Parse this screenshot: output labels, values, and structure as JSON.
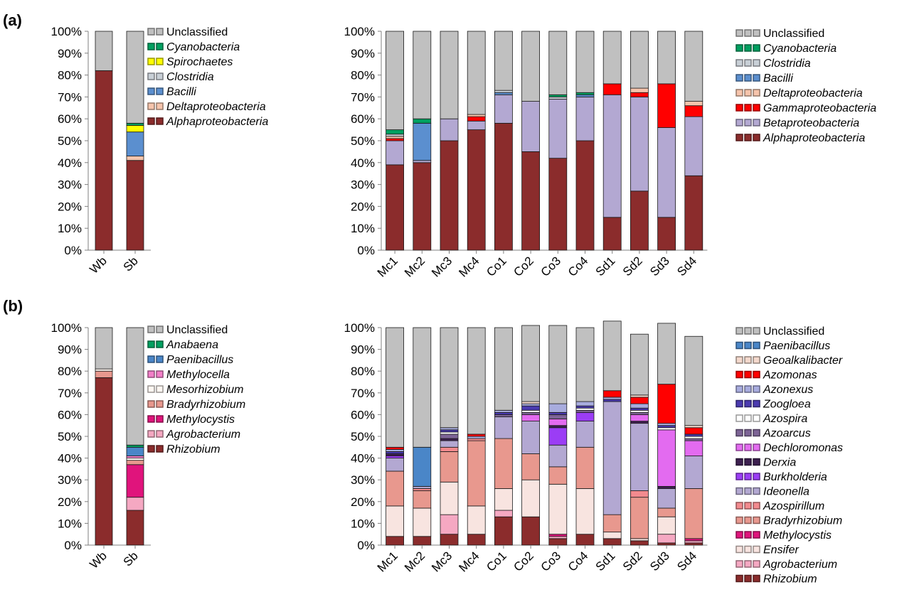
{
  "panel_labels": [
    "(a)",
    "(b)"
  ],
  "colors": {
    "Unclassified": "#c0c0c0",
    "Alphaproteobacteria": "#8b2c2c",
    "Betaproteobacteria": "#b3a8d2",
    "Gammaproteobacteria": "#ff0000",
    "Deltaproteobacteria": "#f6c4ac",
    "Bacilli": "#5b8fcf",
    "Clostridia": "#c8cfd6",
    "Spirochaetes": "#ffff00",
    "Cyanobacteria": "#00a060",
    "Anabaena": "#00a060",
    "Paenibacillus": "#4a86c8",
    "Methylocella": "#f27fc8",
    "Mesorhizobium": "#fff7f2",
    "Bradyrhizobium": "#e8988e",
    "Methylocystis": "#e0147c",
    "Agrobacterium": "#f5a8c2",
    "Rhizobium": "#8b2c2c",
    "Geoalkalibacter": "#f4d8cc",
    "Azomonas": "#ff0000",
    "Azonexus": "#a8acde",
    "Zoogloea": "#4a3ab0",
    "Azospira": "#ffffff",
    "Azoarcus": "#7d6496",
    "Dechloromonas": "#e36bf0",
    "Derxia": "#3d2050",
    "Burkholderia": "#9b3df5",
    "Ideonella": "#b3a8d2",
    "Azospirillum": "#f28a8e",
    "Ensifer": "#f8e4e0"
  },
  "chart_data": [
    {
      "type": "bar",
      "stacked": true,
      "categories": [
        "Wb",
        "Sb"
      ],
      "ylim": [
        0,
        100
      ],
      "yticks": [
        "0%",
        "10%",
        "20%",
        "30%",
        "40%",
        "50%",
        "60%",
        "70%",
        "80%",
        "90%",
        "100%"
      ],
      "series": [
        {
          "name": "Alphaproteobacteria",
          "values": [
            82,
            41
          ]
        },
        {
          "name": "Deltaproteobacteria",
          "values": [
            0,
            2
          ]
        },
        {
          "name": "Bacilli",
          "values": [
            0,
            11
          ]
        },
        {
          "name": "Clostridia",
          "values": [
            0,
            0
          ]
        },
        {
          "name": "Spirochaetes",
          "values": [
            0,
            3
          ]
        },
        {
          "name": "Cyanobacteria",
          "values": [
            0,
            1
          ]
        },
        {
          "name": "Unclassified",
          "values": [
            18,
            42
          ]
        }
      ],
      "legend": [
        "Unclassified",
        "Cyanobacteria",
        "Spirochaetes",
        "Clostridia",
        "Bacilli",
        "Deltaproteobacteria",
        "Alphaproteobacteria"
      ]
    },
    {
      "type": "bar",
      "stacked": true,
      "categories": [
        "Mc1",
        "Mc2",
        "Mc3",
        "Mc4",
        "Co1",
        "Co2",
        "Co3",
        "Co4",
        "Sd1",
        "Sd2",
        "Sd3",
        "Sd4"
      ],
      "ylim": [
        0,
        100
      ],
      "yticks": [
        "0%",
        "10%",
        "20%",
        "30%",
        "40%",
        "50%",
        "60%",
        "70%",
        "80%",
        "90%",
        "100%"
      ],
      "series": [
        {
          "name": "Alphaproteobacteria",
          "values": [
            39,
            40,
            50,
            55,
            58,
            45,
            42,
            50,
            15,
            27,
            15,
            34
          ]
        },
        {
          "name": "Betaproteobacteria",
          "values": [
            11,
            1,
            10,
            4,
            13,
            23,
            27,
            20,
            56,
            43,
            41,
            27
          ]
        },
        {
          "name": "Gammaproteobacteria",
          "values": [
            1,
            0,
            0,
            2,
            0,
            0,
            0,
            0,
            5,
            2,
            20,
            5
          ]
        },
        {
          "name": "Deltaproteobacteria",
          "values": [
            1,
            0,
            0,
            1,
            0,
            0,
            0,
            0,
            0,
            2,
            0,
            2
          ]
        },
        {
          "name": "Bacilli",
          "values": [
            0,
            17,
            0,
            0,
            1,
            0,
            0,
            1,
            0,
            0,
            0,
            0
          ]
        },
        {
          "name": "Clostridia",
          "values": [
            1,
            0,
            0,
            0,
            1,
            0,
            1,
            0,
            0,
            0,
            0,
            0
          ]
        },
        {
          "name": "Cyanobacteria",
          "values": [
            2,
            2,
            0,
            0,
            0,
            0,
            1,
            1,
            0,
            0,
            0,
            0
          ]
        },
        {
          "name": "Unclassified",
          "values": [
            45,
            40,
            40,
            38,
            27,
            32,
            29,
            28,
            24,
            26,
            24,
            32
          ]
        }
      ],
      "legend": [
        "Unclassified",
        "Cyanobacteria",
        "Clostridia",
        "Bacilli",
        "Deltaproteobacteria",
        "Gammaproteobacteria",
        "Betaproteobacteria",
        "Alphaproteobacteria"
      ]
    },
    {
      "type": "bar",
      "stacked": true,
      "categories": [
        "Wb",
        "Sb"
      ],
      "ylim": [
        0,
        100
      ],
      "yticks": [
        "0%",
        "10%",
        "20%",
        "30%",
        "40%",
        "50%",
        "60%",
        "70%",
        "80%",
        "90%",
        "100%"
      ],
      "series": [
        {
          "name": "Rhizobium",
          "values": [
            77,
            16
          ]
        },
        {
          "name": "Agrobacterium",
          "values": [
            0,
            6
          ]
        },
        {
          "name": "Methylocystis",
          "values": [
            0,
            15
          ]
        },
        {
          "name": "Bradyrhizobium",
          "values": [
            3,
            2
          ]
        },
        {
          "name": "Mesorhizobium",
          "values": [
            1,
            1
          ]
        },
        {
          "name": "Methylocella",
          "values": [
            0,
            1
          ]
        },
        {
          "name": "Paenibacillus",
          "values": [
            0,
            4
          ]
        },
        {
          "name": "Anabaena",
          "values": [
            0,
            1
          ]
        },
        {
          "name": "Unclassified",
          "values": [
            19,
            54
          ]
        }
      ],
      "legend": [
        "Unclassified",
        "Anabaena",
        "Paenibacillus",
        "Methylocella",
        "Mesorhizobium",
        "Bradyrhizobium",
        "Methylocystis",
        "Agrobacterium",
        "Rhizobium"
      ]
    },
    {
      "type": "bar",
      "stacked": true,
      "categories": [
        "Mc1",
        "Mc2",
        "Mc3",
        "Mc4",
        "Co1",
        "Co2",
        "Co3",
        "Co4",
        "Sd1",
        "Sd2",
        "Sd3",
        "Sd4"
      ],
      "ylim": [
        0,
        100
      ],
      "yticks": [
        "0%",
        "10%",
        "20%",
        "30%",
        "40%",
        "50%",
        "60%",
        "70%",
        "80%",
        "90%",
        "100%"
      ],
      "series": [
        {
          "name": "Rhizobium",
          "values": [
            4,
            4,
            5,
            5,
            13,
            13,
            3,
            5,
            3,
            2,
            1,
            1
          ]
        },
        {
          "name": "Agrobacterium",
          "values": [
            0,
            0,
            9,
            0,
            3,
            0,
            1,
            0,
            0,
            0,
            4,
            1
          ]
        },
        {
          "name": "Methylocystis",
          "values": [
            0,
            0,
            0,
            0,
            0,
            0,
            1,
            0,
            0,
            0,
            0,
            1
          ]
        },
        {
          "name": "Ensifer",
          "values": [
            14,
            13,
            15,
            13,
            10,
            17,
            23,
            21,
            3,
            1,
            8,
            0
          ]
        },
        {
          "name": "Bradyrhizobium",
          "values": [
            16,
            8,
            14,
            30,
            23,
            12,
            8,
            19,
            8,
            19,
            4,
            23
          ]
        },
        {
          "name": "Azospirillum",
          "values": [
            0,
            1,
            2,
            1,
            0,
            0,
            0,
            0,
            0,
            3,
            0,
            0
          ]
        },
        {
          "name": "Ideonella",
          "values": [
            6,
            1,
            3,
            0,
            10,
            15,
            10,
            12,
            52,
            31,
            9,
            15
          ]
        },
        {
          "name": "Burkholderia",
          "values": [
            1,
            0,
            0,
            0,
            0,
            0,
            8,
            4,
            0,
            0,
            0,
            0
          ]
        },
        {
          "name": "Derxia",
          "values": [
            1,
            0,
            1,
            0,
            0,
            0,
            1,
            0,
            0,
            1,
            1,
            0
          ]
        },
        {
          "name": "Dechloromonas",
          "values": [
            0,
            0,
            0,
            0,
            0,
            3,
            3,
            0,
            0,
            3,
            26,
            7
          ]
        },
        {
          "name": "Azoarcus",
          "values": [
            0,
            0,
            2,
            0,
            1,
            1,
            2,
            1,
            0,
            1,
            0,
            1
          ]
        },
        {
          "name": "Azospira",
          "values": [
            0,
            0,
            1,
            0,
            0,
            1,
            0,
            1,
            0,
            1,
            1,
            1
          ]
        },
        {
          "name": "Zoogloea",
          "values": [
            1,
            0,
            1,
            0,
            1,
            2,
            1,
            1,
            1,
            1,
            1,
            1
          ]
        },
        {
          "name": "Azonexus",
          "values": [
            1,
            0,
            1,
            1,
            1,
            1,
            4,
            2,
            1,
            2,
            1,
            0
          ]
        },
        {
          "name": "Azomonas",
          "values": [
            1,
            0,
            0,
            1,
            0,
            0,
            0,
            0,
            3,
            3,
            18,
            3
          ]
        },
        {
          "name": "Geoalkalibacter",
          "values": [
            0,
            0,
            0,
            0,
            0,
            1,
            0,
            0,
            0,
            1,
            0,
            1
          ]
        },
        {
          "name": "Paenibacillus",
          "values": [
            0,
            18,
            0,
            0,
            0,
            0,
            0,
            0,
            0,
            0,
            0,
            0
          ]
        },
        {
          "name": "Unclassified",
          "values": [
            55,
            55,
            46,
            49,
            38,
            35,
            36,
            34,
            32,
            28,
            28,
            41
          ]
        }
      ],
      "legend": [
        "Unclassified",
        "Paenibacillus",
        "Geoalkalibacter",
        "Azomonas",
        "Azonexus",
        "Zoogloea",
        "Azospira",
        "Azoarcus",
        "Dechloromonas",
        "Derxia",
        "Burkholderia",
        "Ideonella",
        "Azospirillum",
        "Bradyrhizobium",
        "Methylocystis",
        "Ensifer",
        "Agrobacterium",
        "Rhizobium"
      ]
    }
  ]
}
